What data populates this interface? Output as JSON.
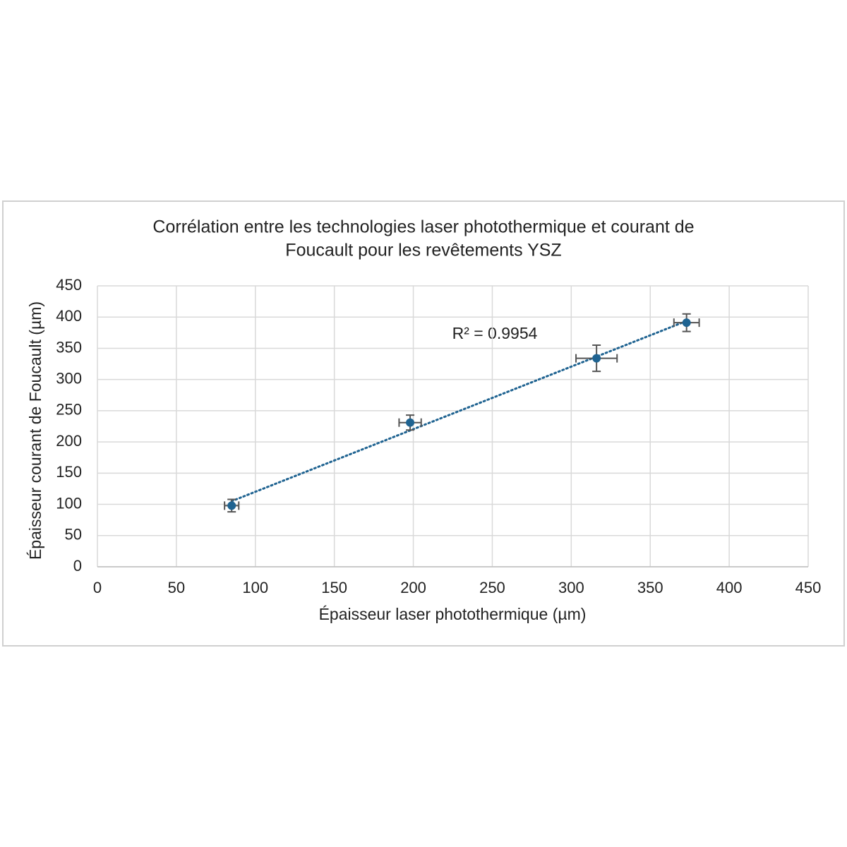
{
  "chart_data": {
    "type": "scatter",
    "title": [
      "Corrélation entre les technologies laser photothermique et courant de",
      "Foucault pour les revêtements YSZ"
    ],
    "x_label": "Épaisseur laser photothermique (µm)",
    "y_label": "Épaisseur courant de Foucault (µm)",
    "annotation": "R² = 0.9954",
    "series": [
      {
        "name": "YSZ",
        "color": "#1f6391",
        "x": [
          85,
          198,
          316,
          373
        ],
        "values": [
          98,
          231,
          334,
          391
        ],
        "x_errors": [
          4.5,
          7,
          13,
          8
        ],
        "y_errors": [
          10,
          12,
          21,
          14
        ]
      }
    ],
    "trendline": "linear",
    "error_bar_color": "#555555",
    "xlim": [
      0,
      450
    ],
    "xticks": [
      0,
      50,
      100,
      150,
      200,
      250,
      300,
      350,
      400,
      450
    ],
    "ylim": [
      0,
      450
    ],
    "yticks": [
      0,
      50,
      100,
      150,
      200,
      250,
      300,
      350,
      400,
      450
    ],
    "grid": true
  }
}
